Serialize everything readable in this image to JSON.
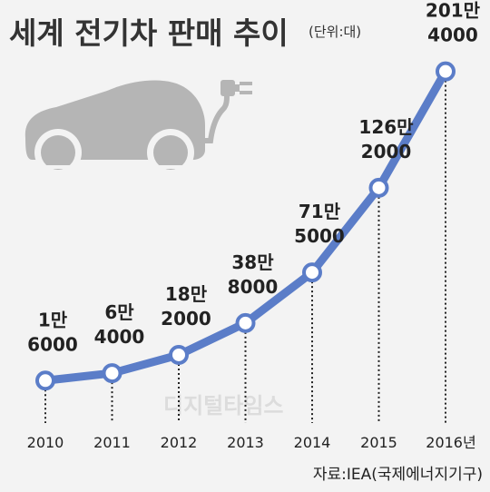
{
  "chart_data": {
    "type": "line",
    "title": "세계 전기차 판매 추이",
    "unit": "(단위:대)",
    "categories": [
      "2010",
      "2011",
      "2012",
      "2013",
      "2014",
      "2015",
      "2016년"
    ],
    "values": [
      16000,
      64000,
      182000,
      388000,
      715000,
      1262000,
      2014000
    ],
    "value_labels": [
      [
        "1만",
        "6000"
      ],
      [
        "6만",
        "4000"
      ],
      [
        "18만",
        "2000"
      ],
      [
        "38만",
        "8000"
      ],
      [
        "71만",
        "5000"
      ],
      [
        "126만",
        "2000"
      ],
      [
        "201만",
        "4000"
      ]
    ],
    "ylim": [
      0,
      2100000
    ],
    "grid": false,
    "line_color": "#5b7dc8",
    "marker_fill": "#ffffff",
    "source": "자료:IEA(국제에너지기구)",
    "watermark": "디지털타임스"
  }
}
